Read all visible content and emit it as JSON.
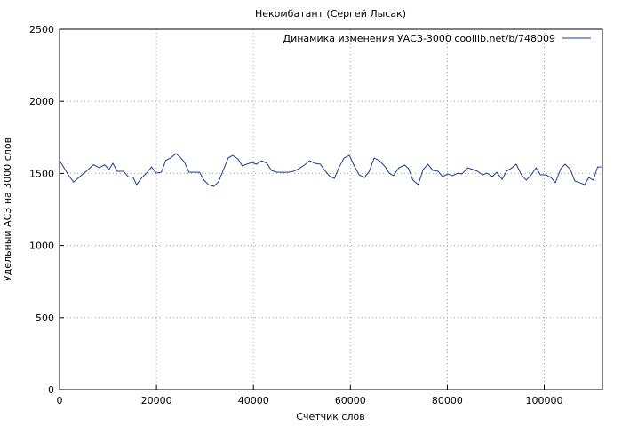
{
  "chart_data": {
    "type": "line",
    "title": "Некомбатант (Сергей Лысак)",
    "x_label": "Счетчик слов",
    "y_label": "Удельный АСЗ на 3000 слов",
    "xlim": [
      0,
      112000
    ],
    "ylim": [
      0,
      2500
    ],
    "xticks": [
      0,
      20000,
      40000,
      60000,
      80000,
      100000
    ],
    "yticks": [
      0,
      500,
      1000,
      1500,
      2000,
      2500
    ],
    "grid": true,
    "legend": "top-right",
    "x": [
      0,
      1000,
      1800,
      2900,
      4200,
      5500,
      7000,
      8200,
      9300,
      10200,
      11000,
      11900,
      13200,
      14100,
      15200,
      15900,
      17000,
      18100,
      19000,
      19900,
      21000,
      21900,
      22900,
      24000,
      24900,
      25800,
      26700,
      27800,
      28900,
      29800,
      30700,
      31800,
      32800,
      33900,
      34800,
      35700,
      36800,
      37700,
      38600,
      39700,
      40600,
      41700,
      42800,
      43700,
      44800,
      45900,
      47200,
      48300,
      49400,
      50500,
      51600,
      52700,
      53800,
      54700,
      55800,
      56700,
      57600,
      58700,
      59800,
      60700,
      61800,
      62900,
      63900,
      64900,
      66000,
      67200,
      68000,
      68900,
      70000,
      71200,
      72000,
      72900,
      74000,
      75000,
      76000,
      77000,
      78100,
      79000,
      80100,
      81100,
      82200,
      83000,
      84200,
      85300,
      86200,
      87300,
      88200,
      89300,
      90200,
      91300,
      92200,
      93300,
      94200,
      95300,
      96300,
      97300,
      98300,
      99200,
      100300,
      101400,
      102300,
      103400,
      104300,
      105400,
      106300,
      107400,
      108300,
      109200,
      110100,
      111000,
      111800
    ],
    "series": [
      {
        "name": "Динамика изменения УАСЗ-3000 coollib.net/b/748009",
        "color": "#1a3d8f",
        "values": [
          1590,
          1535,
          1490,
          1440,
          1478,
          1515,
          1560,
          1540,
          1560,
          1527,
          1570,
          1515,
          1515,
          1478,
          1471,
          1422,
          1471,
          1508,
          1545,
          1502,
          1508,
          1590,
          1607,
          1638,
          1613,
          1576,
          1508,
          1508,
          1508,
          1453,
          1422,
          1410,
          1441,
          1533,
          1607,
          1625,
          1601,
          1552,
          1564,
          1576,
          1564,
          1588,
          1570,
          1521,
          1508,
          1508,
          1508,
          1515,
          1533,
          1558,
          1588,
          1570,
          1564,
          1521,
          1478,
          1465,
          1539,
          1607,
          1625,
          1558,
          1490,
          1471,
          1515,
          1607,
          1588,
          1545,
          1502,
          1484,
          1539,
          1558,
          1533,
          1453,
          1422,
          1527,
          1564,
          1521,
          1515,
          1478,
          1496,
          1484,
          1502,
          1496,
          1539,
          1527,
          1515,
          1490,
          1502,
          1478,
          1508,
          1459,
          1515,
          1539,
          1564,
          1490,
          1453,
          1490,
          1539,
          1490,
          1490,
          1471,
          1435,
          1533,
          1564,
          1527,
          1447,
          1435,
          1422,
          1471,
          1453,
          1545,
          1545
        ]
      }
    ]
  }
}
